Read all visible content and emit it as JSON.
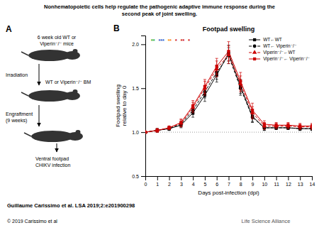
{
  "chart_data": {
    "type": "line",
    "figure_title": [
      "Nonhematopoietic cells help regulate the pathogenic adaptive immune response during the",
      "second peak of joint swelling."
    ],
    "title": "Footpad swelling",
    "xlabel": "Days post-infection (dpi)",
    "ylabel": "Footpad swelling\nrelative to day 0",
    "panel_labels": [
      "A",
      "B"
    ],
    "schematic_texts": [
      "6 week old WT or",
      "Viperin⁻/⁻ mice",
      "Irradiation",
      "WT or Viperin⁻/⁻ BM",
      "Engraftment",
      "(9 weeks)",
      "Ventral footpad",
      "CHIKV infection"
    ],
    "x": [
      0,
      1,
      2,
      3,
      4,
      5,
      6,
      7,
      8,
      9,
      10,
      11,
      12,
      13,
      14
    ],
    "series": [
      {
        "name": "WT←WT",
        "color": "#000000",
        "marker": "square",
        "line_style": "solid",
        "values": [
          1.0,
          1.02,
          1.04,
          1.08,
          1.22,
          1.42,
          1.65,
          1.9,
          1.52,
          1.18,
          1.05,
          1.05,
          1.05,
          1.04,
          1.04
        ],
        "errors": [
          0.01,
          0.02,
          0.02,
          0.03,
          0.05,
          0.07,
          0.08,
          0.09,
          0.08,
          0.06,
          0.03,
          0.02,
          0.02,
          0.02,
          0.02
        ]
      },
      {
        "name": "WT← Viperin⁻/⁻",
        "color": "#000000",
        "marker": "circle",
        "line_style": "dashed",
        "values": [
          1.0,
          1.02,
          1.04,
          1.09,
          1.25,
          1.46,
          1.68,
          1.87,
          1.5,
          1.17,
          1.05,
          1.05,
          1.05,
          1.04,
          1.04
        ],
        "errors": [
          0.01,
          0.02,
          0.02,
          0.03,
          0.05,
          0.07,
          0.08,
          0.09,
          0.08,
          0.06,
          0.03,
          0.02,
          0.02,
          0.02,
          0.02
        ]
      },
      {
        "name": "Viperin⁻/⁻←WT",
        "color": "#cc0000",
        "marker": "triangle",
        "line_style": "dashed",
        "values": [
          1.0,
          1.02,
          1.05,
          1.1,
          1.28,
          1.5,
          1.72,
          1.88,
          1.55,
          1.22,
          1.07,
          1.07,
          1.07,
          1.06,
          1.06
        ],
        "errors": [
          0.01,
          0.02,
          0.02,
          0.04,
          0.06,
          0.08,
          0.09,
          0.1,
          0.09,
          0.07,
          0.04,
          0.03,
          0.03,
          0.03,
          0.03
        ]
      },
      {
        "name": "Viperin⁻/⁻← Viperin⁻/⁻",
        "color": "#cc0000",
        "marker": "square",
        "line_style": "solid",
        "values": [
          1.0,
          1.02,
          1.05,
          1.11,
          1.3,
          1.52,
          1.75,
          1.92,
          1.58,
          1.25,
          1.09,
          1.08,
          1.08,
          1.07,
          1.07
        ],
        "errors": [
          0.01,
          0.02,
          0.02,
          0.04,
          0.06,
          0.08,
          0.09,
          0.11,
          0.1,
          0.08,
          0.04,
          0.03,
          0.03,
          0.03,
          0.03
        ]
      }
    ],
    "xlim": [
      0,
      14
    ],
    "xticks": [
      0,
      1,
      2,
      3,
      4,
      5,
      6,
      7,
      8,
      9,
      10,
      11,
      12,
      13,
      14
    ],
    "ylim": [
      0.5,
      2.1
    ],
    "yticks": [
      0.5,
      {
        "value": 1.0,
        "label": "1.0"
      },
      1.5,
      {
        "value": 2.0,
        "label": "2.0"
      }
    ],
    "reference_line": 1.0,
    "legend": "upper right",
    "annotations": [
      {
        "text": "**",
        "color": "#22aa22"
      },
      {
        "text": "***",
        "color": "#2255cc"
      },
      {
        "text": "**",
        "color": "#ff8800"
      },
      {
        "text": "*",
        "color": "#cc0000"
      },
      {
        "text": "**",
        "color": "#cc0000"
      },
      {
        "text": "*",
        "color": "#cc0000"
      }
    ],
    "footnote": "Guillaume Carissimo et al. LSA 2019;2:e201900298",
    "copyright": "© 2019 Carissimo et al",
    "logo_text": "Life Science Alliance"
  }
}
